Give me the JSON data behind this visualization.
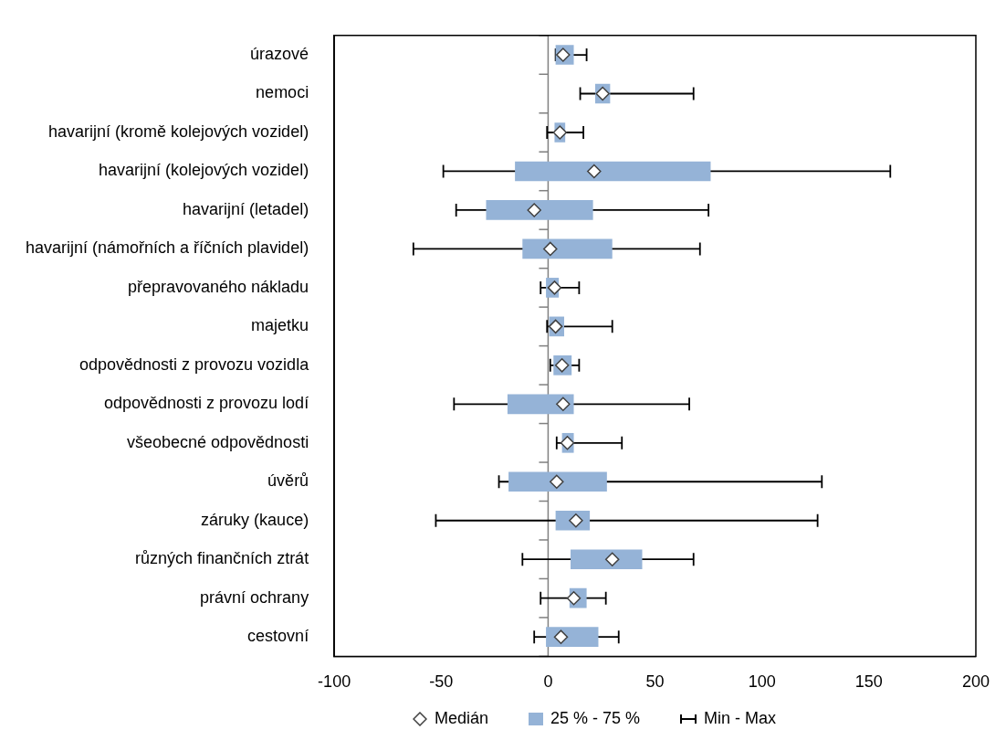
{
  "chart_data": {
    "type": "box",
    "orientation": "horizontal",
    "categories": [
      "úrazové",
      "nemoci",
      "havarijní (kromě kolejových vozidel)",
      "havarijní (kolejových vozidel)",
      "havarijní (letadel)",
      "havarijní (námořních a říčních plavidel)",
      "přepravovaného nákladu",
      "majetku",
      "odpovědnosti z provozu vozidla",
      "odpovědnosti z provozu lodí",
      "všeobecné odpovědnosti",
      "úvěrů",
      "záruky (kauce)",
      "různých finančních ztrát",
      "právní ochrany",
      "cestovní"
    ],
    "series": [
      {
        "name": "25 % - 75 %",
        "color": "#95b3d7",
        "boxes": [
          {
            "low": 3.5,
            "q1": 3.5,
            "median": 7,
            "q3": 12,
            "high": 18
          },
          {
            "low": 15,
            "q1": 22,
            "median": 25.5,
            "q3": 29,
            "high": 68
          },
          {
            "low": -0.5,
            "q1": 3,
            "median": 5.5,
            "q3": 8,
            "high": 16.5
          },
          {
            "low": -49,
            "q1": -15.5,
            "median": 21.5,
            "q3": 76,
            "high": 160
          },
          {
            "low": -43,
            "q1": -29,
            "median": -6.5,
            "q3": 21,
            "high": 75
          },
          {
            "low": -63,
            "q1": -12,
            "median": 1,
            "q3": 30,
            "high": 71
          },
          {
            "low": -3.5,
            "q1": -1,
            "median": 3,
            "q3": 5,
            "high": 14.5
          },
          {
            "low": -0.5,
            "q1": 0.5,
            "median": 3.5,
            "q3": 7.5,
            "high": 30
          },
          {
            "low": 1,
            "q1": 2.5,
            "median": 6.5,
            "q3": 11,
            "high": 14.5
          },
          {
            "low": -44,
            "q1": -19,
            "median": 7,
            "q3": 12,
            "high": 66
          },
          {
            "low": 4,
            "q1": 6.5,
            "median": 9,
            "q3": 12,
            "high": 34.5
          },
          {
            "low": -23,
            "q1": -18.5,
            "median": 4,
            "q3": 27.5,
            "high": 128
          },
          {
            "low": -52.5,
            "q1": 3.5,
            "median": 13,
            "q3": 19.5,
            "high": 126
          },
          {
            "low": -12,
            "q1": 10.5,
            "median": 30,
            "q3": 44,
            "high": 68
          },
          {
            "low": -3.5,
            "q1": 10,
            "median": 12,
            "q3": 18,
            "high": 27
          },
          {
            "low": -6.5,
            "q1": -1,
            "median": 6,
            "q3": 23.5,
            "high": 33
          }
        ]
      }
    ],
    "annotations": [
      "Medián",
      "Min - Max"
    ],
    "xlim": [
      -100,
      200
    ],
    "xticks": [
      -100,
      -50,
      0,
      50,
      100,
      150,
      200
    ],
    "ref_lines": [
      {
        "axis": "x",
        "value": 0,
        "color": "#808080"
      }
    ],
    "legend": "bottom",
    "grid": false
  }
}
